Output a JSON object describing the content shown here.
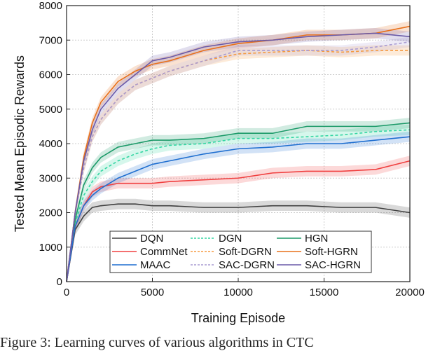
{
  "chart_data": {
    "type": "line",
    "xlabel": "Training Episode",
    "ylabel": "Tested Mean Episodic Rewards",
    "xlim": [
      0,
      20000
    ],
    "ylim": [
      0,
      8000
    ],
    "xticks": [
      0,
      5000,
      10000,
      15000,
      20000
    ],
    "yticks": [
      0,
      1000,
      2000,
      3000,
      4000,
      5000,
      6000,
      7000,
      8000
    ],
    "grid": true,
    "legend_position": "bottom-center",
    "x": [
      0,
      500,
      1000,
      1500,
      2000,
      3000,
      4000,
      5000,
      6000,
      8000,
      10000,
      12000,
      14000,
      16000,
      18000,
      20000
    ],
    "series": [
      {
        "name": "DQN",
        "color": "#404040",
        "dashed": false,
        "values": [
          0,
          1500,
          1900,
          2150,
          2200,
          2250,
          2250,
          2200,
          2200,
          2150,
          2150,
          2200,
          2200,
          2150,
          2150,
          2000
        ]
      },
      {
        "name": "DGN",
        "color": "#33d6a2",
        "dashed": true,
        "values": [
          0,
          1700,
          2500,
          2900,
          3200,
          3500,
          3700,
          3850,
          3950,
          4000,
          4150,
          4150,
          4200,
          4250,
          4350,
          4400
        ]
      },
      {
        "name": "HGN",
        "color": "#1b9a68",
        "dashed": false,
        "values": [
          0,
          1800,
          2800,
          3300,
          3600,
          3900,
          4000,
          4100,
          4100,
          4150,
          4300,
          4300,
          4500,
          4500,
          4500,
          4600
        ]
      },
      {
        "name": "CommNet",
        "color": "#f04040",
        "dashed": false,
        "values": [
          0,
          1600,
          2200,
          2600,
          2750,
          2850,
          2850,
          2850,
          2900,
          2950,
          3000,
          3150,
          3200,
          3200,
          3250,
          3500
        ]
      },
      {
        "name": "Soft-DGRN",
        "color": "#f59a40",
        "dashed": true,
        "values": [
          0,
          2000,
          3300,
          4200,
          4700,
          5300,
          5700,
          5900,
          6100,
          6400,
          6600,
          6650,
          6700,
          6650,
          6700,
          6700
        ]
      },
      {
        "name": "Soft-HGRN",
        "color": "#e8701a",
        "dashed": false,
        "values": [
          0,
          2000,
          3600,
          4600,
          5200,
          5800,
          6100,
          6300,
          6400,
          6700,
          6900,
          7000,
          7150,
          7150,
          7200,
          7400
        ]
      },
      {
        "name": "MAAC",
        "color": "#1f6fd0",
        "dashed": false,
        "values": [
          0,
          1600,
          2200,
          2500,
          2700,
          3000,
          3200,
          3400,
          3500,
          3700,
          3850,
          3900,
          4000,
          4000,
          4100,
          4200
        ]
      },
      {
        "name": "SAC-DGRN",
        "color": "#a99bd2",
        "dashed": true,
        "values": [
          0,
          2000,
          3300,
          4200,
          4700,
          5300,
          5700,
          5900,
          6100,
          6400,
          6700,
          6700,
          6700,
          6700,
          6800,
          6950
        ]
      },
      {
        "name": "SAC-HGRN",
        "color": "#6a5aa8",
        "dashed": false,
        "values": [
          0,
          2000,
          3500,
          4400,
          5000,
          5600,
          6000,
          6400,
          6500,
          6800,
          6950,
          7000,
          7100,
          7150,
          7200,
          7100
        ]
      }
    ]
  },
  "caption": "Figure 3: Learning curves of various algorithms in CTC"
}
